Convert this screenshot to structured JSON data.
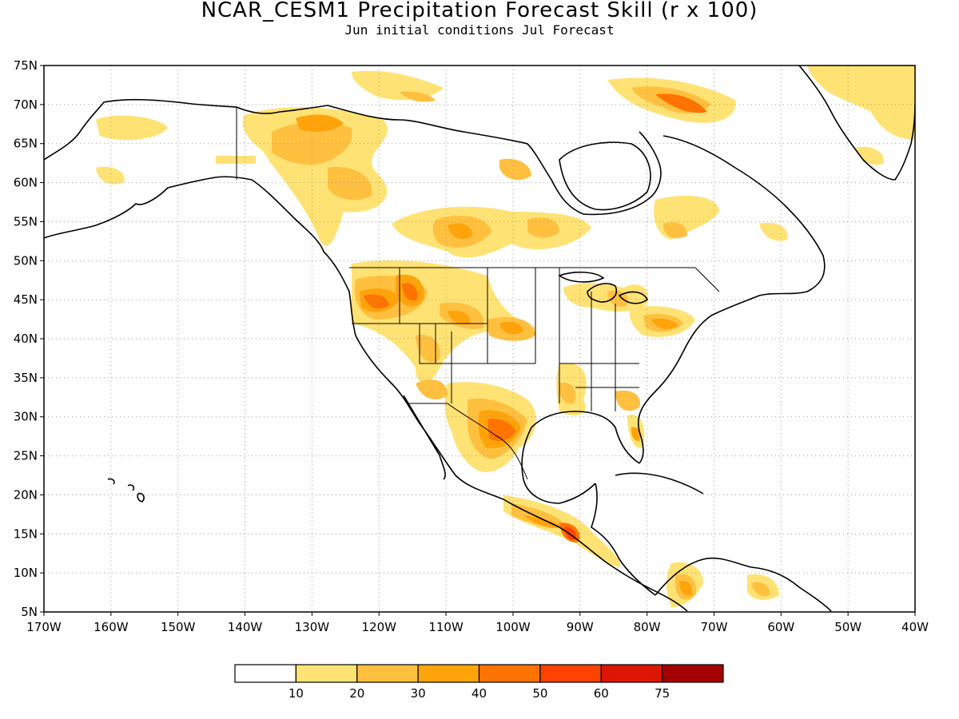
{
  "title": "NCAR_CESM1 Precipitation Forecast Skill (r x 100)",
  "subtitle": "Jun initial conditions  Jul Forecast",
  "lat_labels": [
    "75N",
    "70N",
    "65N",
    "60N",
    "55N",
    "50N",
    "45N",
    "40N",
    "35N",
    "30N",
    "25N",
    "20N",
    "15N",
    "10N",
    "5N"
  ],
  "lon_labels": [
    "170W",
    "160W",
    "150W",
    "140W",
    "130W",
    "120W",
    "110W",
    "100W",
    "90W",
    "80W",
    "70W",
    "60W",
    "50W",
    "40W"
  ],
  "colorbar": {
    "labels": [
      "10",
      "20",
      "30",
      "40",
      "50",
      "60",
      "75"
    ],
    "colors": [
      "#ffffff",
      "#ffe274",
      "#ffc040",
      "#ffa30b",
      "#ff7300",
      "#ff4200",
      "#dc1600",
      "#a50000"
    ]
  },
  "skill_regions": [
    {
      "name": "Alaska",
      "level": 1
    },
    {
      "name": "Yukon / NW Territories",
      "level": 3
    },
    {
      "name": "Saskatchewan / Manitoba",
      "level": 3
    },
    {
      "name": "Hudson Bay west",
      "level": 2
    },
    {
      "name": "Pacific Northwest",
      "level": 4
    },
    {
      "name": "Idaho / Montana",
      "level": 4
    },
    {
      "name": "Colorado / Kansas",
      "level": 3
    },
    {
      "name": "Texas / Northern Mexico",
      "level": 4
    },
    {
      "name": "Great Lakes",
      "level": 3
    },
    {
      "name": "Mid-Atlantic",
      "level": 3
    },
    {
      "name": "Southeast US",
      "level": 2
    },
    {
      "name": "Central America",
      "level": 5
    },
    {
      "name": "Colombia / Venezuela",
      "level": 3
    },
    {
      "name": "Baffin Island",
      "level": 4
    },
    {
      "name": "Greenland",
      "level": 1
    },
    {
      "name": "Labrador",
      "level": 2
    }
  ]
}
